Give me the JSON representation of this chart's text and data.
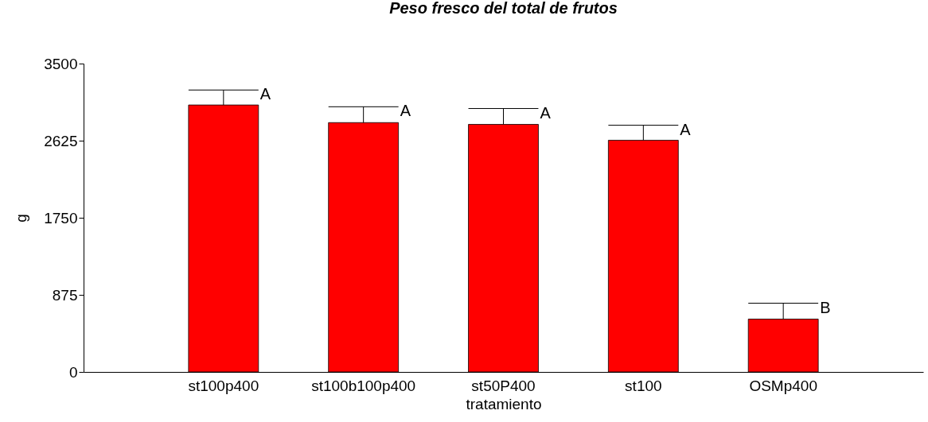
{
  "chart_data": {
    "type": "bar",
    "title": "Peso fresco del total de frutos",
    "xlabel": "tratamiento",
    "ylabel": "g",
    "categories": [
      "st100p400",
      "st100b100p400",
      "st50P400",
      "st100",
      "OSMp400"
    ],
    "values": [
      3030,
      2830,
      2810,
      2630,
      600
    ],
    "errors": [
      [
        3030,
        3200
      ],
      [
        2830,
        3010
      ],
      [
        2810,
        2990
      ],
      [
        2630,
        2800
      ],
      [
        600,
        780
      ]
    ],
    "color": "#ff0000",
    "ylim": [
      0,
      3500
    ],
    "yticks": [
      0,
      875,
      1750,
      2625,
      3500
    ],
    "grid": false,
    "annotations": [
      {
        "text": "A",
        "x": "st100p400",
        "y": 3200
      },
      {
        "text": "A",
        "x": "st100b100p400",
        "y": 3010
      },
      {
        "text": "A",
        "x": "st50P400",
        "y": 2990
      },
      {
        "text": "A",
        "x": "st100",
        "y": 2800
      },
      {
        "text": "B",
        "x": "OSMp400",
        "y": 780
      }
    ]
  }
}
